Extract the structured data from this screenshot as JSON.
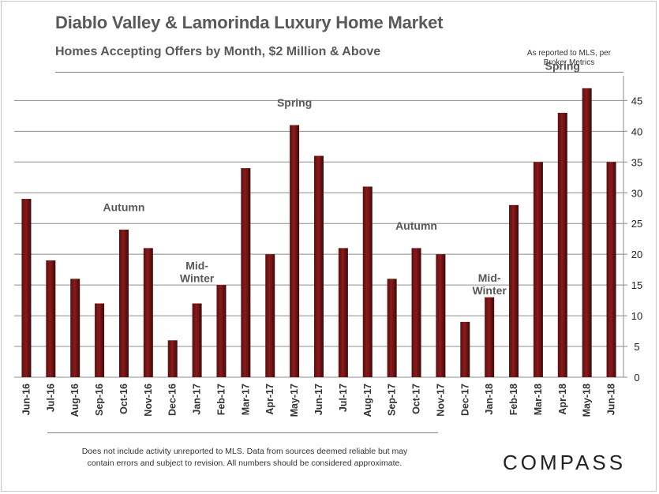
{
  "header": {
    "title": "Diablo Valley & Lamorinda Luxury Home Market",
    "subtitle": "Homes Accepting Offers by Month, $2 Million  & Above",
    "note_line1": "As reported to MLS, per",
    "note_line2": "Broker Metrics"
  },
  "footer": {
    "line1": "Does not include activity unreported to MLS. Data from sources deemed reliable but may",
    "line2": "contain errors and subject to revision.  All numbers should be considered approximate.",
    "logo": "COMPASS"
  },
  "chart_data": {
    "type": "bar",
    "categories": [
      "Jun-16",
      "Jul-16",
      "Aug-16",
      "Sep-16",
      "Oct-16",
      "Nov-16",
      "Dec-16",
      "Jan-17",
      "Feb-17",
      "Mar-17",
      "Apr-17",
      "May-17",
      "Jun-17",
      "Jul-17",
      "Aug-17",
      "Sep-17",
      "Oct-17",
      "Nov-17",
      "Dec-17",
      "Jan-18",
      "Feb-18",
      "Mar-18",
      "Apr-18",
      "May-18",
      "Jun-18"
    ],
    "values": [
      29,
      19,
      16,
      12,
      24,
      21,
      6,
      12,
      15,
      34,
      20,
      41,
      36,
      21,
      31,
      16,
      21,
      20,
      9,
      13,
      28,
      35,
      43,
      47,
      35
    ],
    "ylim": [
      0,
      48
    ],
    "yticks": [
      0,
      5,
      10,
      15,
      20,
      25,
      30,
      35,
      40,
      45
    ],
    "y_axis_side": "right",
    "grid": true,
    "bar_color": "#8b1a1a",
    "annotations": [
      {
        "lines": [
          "Autumn"
        ],
        "category": "Oct-16",
        "y": 27
      },
      {
        "lines": [
          "Mid-",
          "Winter"
        ],
        "category": "Jan-17",
        "y": 17.5
      },
      {
        "lines": [
          "Spring"
        ],
        "category": "May-17",
        "y": 44
      },
      {
        "lines": [
          "Autumn"
        ],
        "category": "Oct-17",
        "y": 24
      },
      {
        "lines": [
          "Mid-",
          "Winter"
        ],
        "category": "Jan-18",
        "y": 15.5
      },
      {
        "lines": [
          "Spring"
        ],
        "category": "Apr-18",
        "y": 50
      }
    ]
  }
}
